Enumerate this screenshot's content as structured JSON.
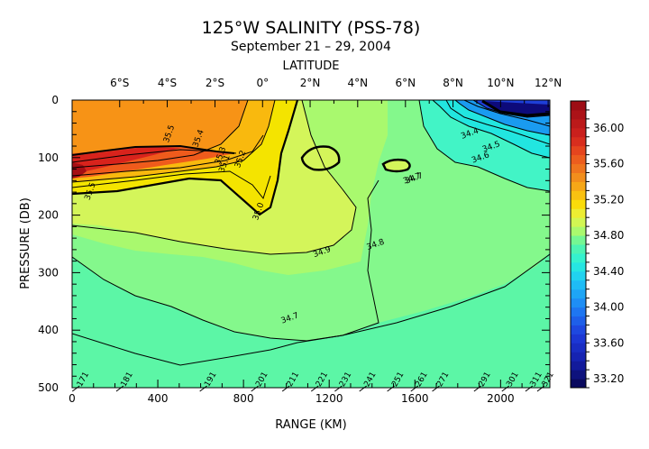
{
  "chart_data": {
    "type": "contour",
    "title": "125°W SALINITY (PSS-78)",
    "subtitle": "September 21 – 29, 2004",
    "xlabel": "RANGE (KM)",
    "ylabel": "PRESSURE (DB)",
    "top_axis_label": "LATITUDE",
    "xlim": [
      0,
      2230
    ],
    "ylim": [
      500,
      0
    ],
    "x_ticks": [
      0,
      400,
      800,
      1200,
      1600,
      2000
    ],
    "x_tick_labels": [
      "0",
      "400",
      "800",
      "1200",
      "1600",
      "2000"
    ],
    "y_ticks": [
      0,
      100,
      200,
      300,
      400,
      500
    ],
    "y_tick_labels": [
      "0",
      "100",
      "200",
      "300",
      "400",
      "500"
    ],
    "latitude_ticks": [
      {
        "label": "6°S",
        "km": 222
      },
      {
        "label": "4°S",
        "km": 444
      },
      {
        "label": "2°S",
        "km": 667
      },
      {
        "label": "0°",
        "km": 889
      },
      {
        "label": "2°N",
        "km": 1111
      },
      {
        "label": "4°N",
        "km": 1333
      },
      {
        "label": "6°N",
        "km": 1556
      },
      {
        "label": "8°N",
        "km": 1778
      },
      {
        "label": "10°N",
        "km": 2000
      },
      {
        "label": "12°N",
        "km": 2222
      }
    ],
    "colorbar": {
      "min": 33.1,
      "max": 36.3,
      "step": 0.1,
      "labels": [
        "33.20",
        "33.60",
        "34.00",
        "34.40",
        "34.80",
        "35.20",
        "35.60",
        "36.00"
      ]
    },
    "contour_labels": [
      {
        "text": "35.5",
        "x": 95,
        "y": 160
      },
      {
        "text": "35.5",
        "x": 463,
        "y": 60
      },
      {
        "text": "35.4",
        "x": 600,
        "y": 68
      },
      {
        "text": "35.3",
        "x": 703,
        "y": 98
      },
      {
        "text": "35.1",
        "x": 722,
        "y": 112
      },
      {
        "text": "35.2",
        "x": 796,
        "y": 104
      },
      {
        "text": "35.0",
        "x": 880,
        "y": 195
      },
      {
        "text": "34.9",
        "x": 1170,
        "y": 268
      },
      {
        "text": "34.8",
        "x": 1420,
        "y": 255
      },
      {
        "text": "34.7",
        "x": 1590,
        "y": 140
      },
      {
        "text": "34.7",
        "x": 1600,
        "y": 140
      },
      {
        "text": "34.7",
        "x": 1020,
        "y": 383
      },
      {
        "text": "34.6",
        "x": 1910,
        "y": 104
      },
      {
        "text": "34.5",
        "x": 1960,
        "y": 85
      },
      {
        "text": "34.4",
        "x": 1860,
        "y": 62
      }
    ],
    "stations": [
      {
        "label": "171",
        "km": 60
      },
      {
        "label": "181",
        "km": 265
      },
      {
        "label": "191",
        "km": 655
      },
      {
        "label": "201",
        "km": 895
      },
      {
        "label": "211",
        "km": 1040
      },
      {
        "label": "221",
        "km": 1175
      },
      {
        "label": "231",
        "km": 1285
      },
      {
        "label": "241",
        "km": 1400
      },
      {
        "label": "251",
        "km": 1530
      },
      {
        "label": "261",
        "km": 1640
      },
      {
        "label": "271",
        "km": 1740
      },
      {
        "label": "291",
        "km": 1935
      },
      {
        "label": "301",
        "km": 2065
      },
      {
        "label": "311",
        "km": 2175
      },
      {
        "label": "321",
        "km": 2230
      }
    ]
  }
}
